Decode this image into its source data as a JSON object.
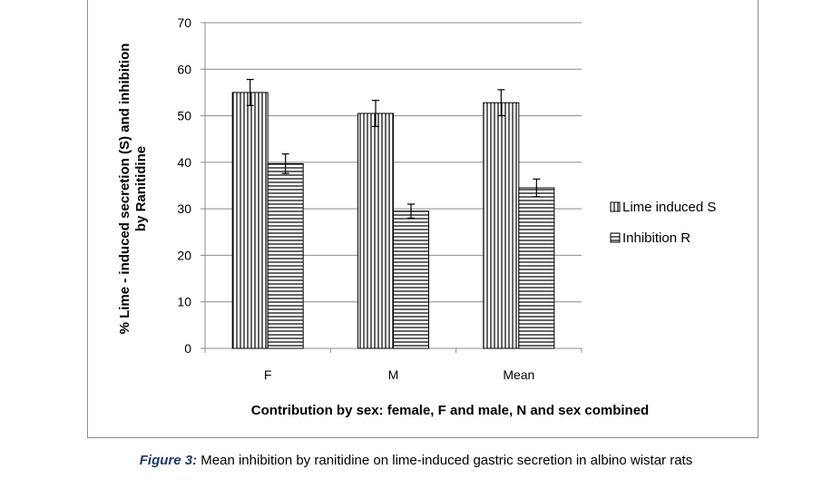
{
  "chart_data": {
    "type": "bar",
    "categories": [
      "F",
      "M",
      "Mean"
    ],
    "series": [
      {
        "name": "Lime induced S",
        "values": [
          55,
          50.5,
          52.8
        ],
        "errors": [
          2.8,
          2.8,
          2.8
        ],
        "pattern": "vertical-lines"
      },
      {
        "name": "Inhibition R",
        "values": [
          39.7,
          29.5,
          34.5
        ],
        "errors": [
          2.1,
          1.5,
          1.9
        ],
        "pattern": "horizontal-lines"
      }
    ],
    "xlabel": "Contribution by sex: female, F and male, N and sex combined",
    "ylabel_line1": "% Lime - induced secretion (S) and inhibition",
    "ylabel_line2": "by Ranitidine",
    "ylim": [
      0,
      70
    ],
    "yticks": [
      0,
      10,
      20,
      30,
      40,
      50,
      60,
      70
    ],
    "grid": true,
    "legend_position": "right"
  },
  "caption": {
    "label": "Figure 3:",
    "text": " Mean inhibition by ranitidine on lime-induced gastric secretion in albino wistar rats"
  }
}
